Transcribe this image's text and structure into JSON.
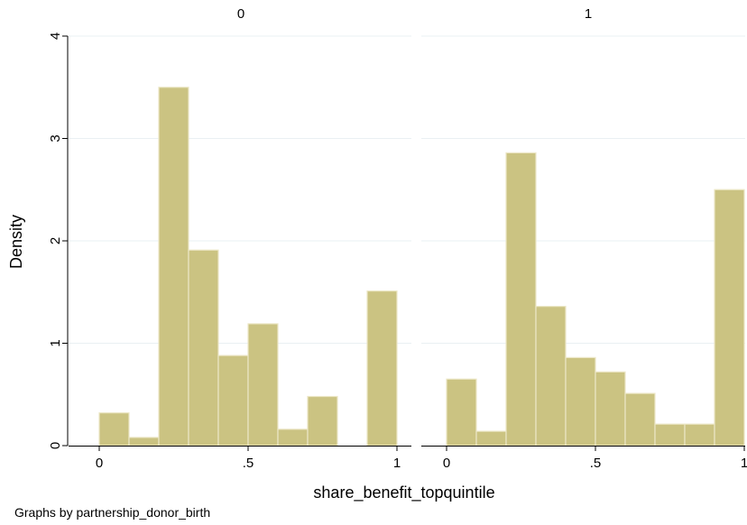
{
  "chart_data": {
    "type": "bar",
    "ylabel": "Density",
    "xlabel": "share_benefit_topquintile",
    "note": "Graphs by partnership_donor_birth",
    "bar_color": "#cbc382",
    "bar_edge_color": "#ece7c6",
    "grid": true,
    "grid_color": "#eaf0f3",
    "ylim": [
      0,
      4
    ],
    "yticks": [
      0,
      1,
      2,
      3,
      4
    ],
    "xlim": [
      0,
      1
    ],
    "xticks": [
      {
        "value": 0,
        "label": "0"
      },
      {
        "value": 0.5,
        "label": ".5"
      },
      {
        "value": 1,
        "label": "1"
      }
    ],
    "panels": [
      {
        "title": "0",
        "bin_width": 0.1,
        "bins": [
          {
            "start": 0.0,
            "density": 0.32
          },
          {
            "start": 0.1,
            "density": 0.08
          },
          {
            "start": 0.2,
            "density": 3.5
          },
          {
            "start": 0.3,
            "density": 1.91
          },
          {
            "start": 0.4,
            "density": 0.88
          },
          {
            "start": 0.5,
            "density": 1.19
          },
          {
            "start": 0.6,
            "density": 0.16
          },
          {
            "start": 0.7,
            "density": 0.48
          },
          {
            "start": 0.9,
            "density": 1.51
          }
        ]
      },
      {
        "title": "1",
        "bin_width": 0.1,
        "bins": [
          {
            "start": 0.0,
            "density": 0.65
          },
          {
            "start": 0.1,
            "density": 0.14
          },
          {
            "start": 0.2,
            "density": 2.86
          },
          {
            "start": 0.3,
            "density": 1.36
          },
          {
            "start": 0.4,
            "density": 0.86
          },
          {
            "start": 0.5,
            "density": 0.72
          },
          {
            "start": 0.6,
            "density": 0.51
          },
          {
            "start": 0.7,
            "density": 0.21
          },
          {
            "start": 0.8,
            "density": 0.21
          },
          {
            "start": 0.9,
            "density": 2.5
          }
        ]
      }
    ]
  }
}
